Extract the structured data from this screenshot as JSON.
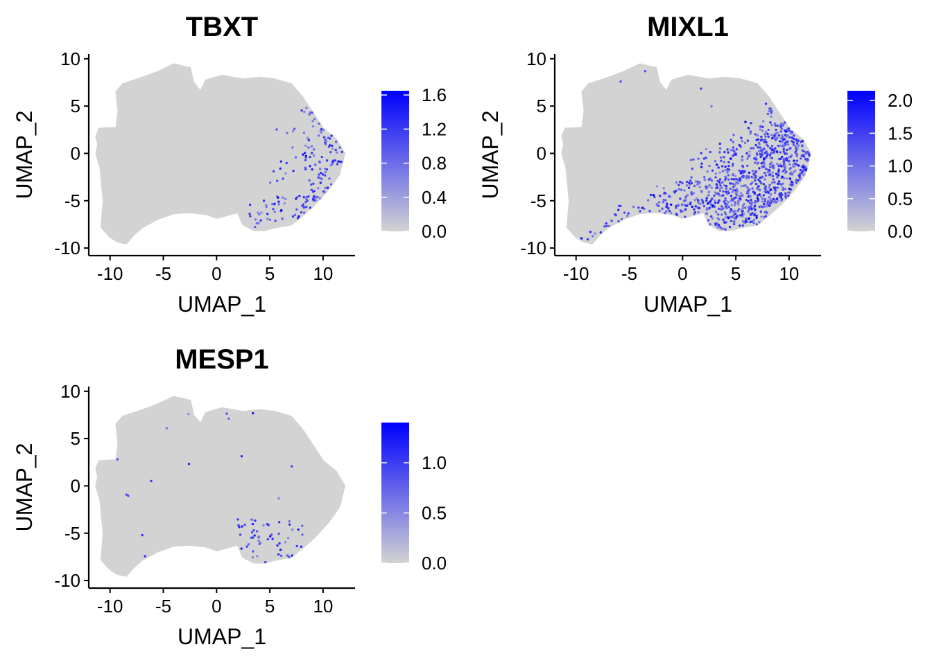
{
  "colors": {
    "low": "#d3d3d3",
    "high": "#0000ff",
    "axis": "#000000"
  },
  "chart_data": [
    {
      "type": "scatter",
      "title": "TBXT",
      "xlabel": "UMAP_1",
      "ylabel": "UMAP_2",
      "xlim": [
        -12,
        13
      ],
      "ylim": [
        -10.8,
        10.5
      ],
      "xticks": [
        -10,
        -5,
        0,
        5,
        10
      ],
      "yticks": [
        -10,
        -5,
        0,
        5,
        10
      ],
      "xtick_labels": [
        "-10",
        "-5",
        "0",
        "5",
        "10"
      ],
      "ytick_labels": [
        "-10",
        "-5",
        "0",
        "5",
        "10"
      ],
      "color_scale": {
        "min": 0.0,
        "max": 1.65,
        "ticks": [
          0.0,
          0.4,
          0.8,
          1.2,
          1.6
        ],
        "labels": [
          "0.0",
          "0.4",
          "0.8",
          "1.2",
          "1.6"
        ]
      },
      "expression_pattern": "sparse positive cells at right edge (UMAP_1 ~7-11.5, UMAP_2 ~-4 to 2) and lower-right region"
    },
    {
      "type": "scatter",
      "title": "MIXL1",
      "xlabel": "UMAP_1",
      "ylabel": "UMAP_2",
      "xlim": [
        -12,
        13
      ],
      "ylim": [
        -10.8,
        10.5
      ],
      "xticks": [
        -10,
        -5,
        0,
        5,
        10
      ],
      "yticks": [
        -10,
        -5,
        0,
        5,
        10
      ],
      "xtick_labels": [
        "-10",
        "-5",
        "0",
        "5",
        "10"
      ],
      "ytick_labels": [
        "-10",
        "-5",
        "0",
        "5",
        "10"
      ],
      "color_scale": {
        "min": 0.0,
        "max": 2.15,
        "ticks": [
          0.0,
          0.5,
          1.0,
          1.5,
          2.0
        ],
        "labels": [
          "0.0",
          "0.5",
          "1.0",
          "1.5",
          "2.0"
        ]
      },
      "expression_pattern": "many positive cells across lower-right region (UMAP_1 ~0-12, UMAP_2 ~-8 to 3)"
    },
    {
      "type": "scatter",
      "title": "MESP1",
      "xlabel": "UMAP_1",
      "ylabel": "UMAP_2",
      "xlim": [
        -12,
        13
      ],
      "ylim": [
        -10.8,
        10.5
      ],
      "xticks": [
        -10,
        -5,
        0,
        5,
        10
      ],
      "yticks": [
        -10,
        -5,
        0,
        5,
        10
      ],
      "xtick_labels": [
        "-10",
        "-5",
        "0",
        "5",
        "10"
      ],
      "ytick_labels": [
        "-10",
        "-5",
        "0",
        "5",
        "10"
      ],
      "color_scale": {
        "min": 0.0,
        "max": 1.4,
        "ticks": [
          0.0,
          0.5,
          1.0
        ],
        "labels": [
          "0.0",
          "0.5",
          "1.0"
        ]
      },
      "expression_pattern": "few scattered positive cells, concentrated near UMAP_1 ~1-8, UMAP_2 ~-4 to -8"
    }
  ]
}
